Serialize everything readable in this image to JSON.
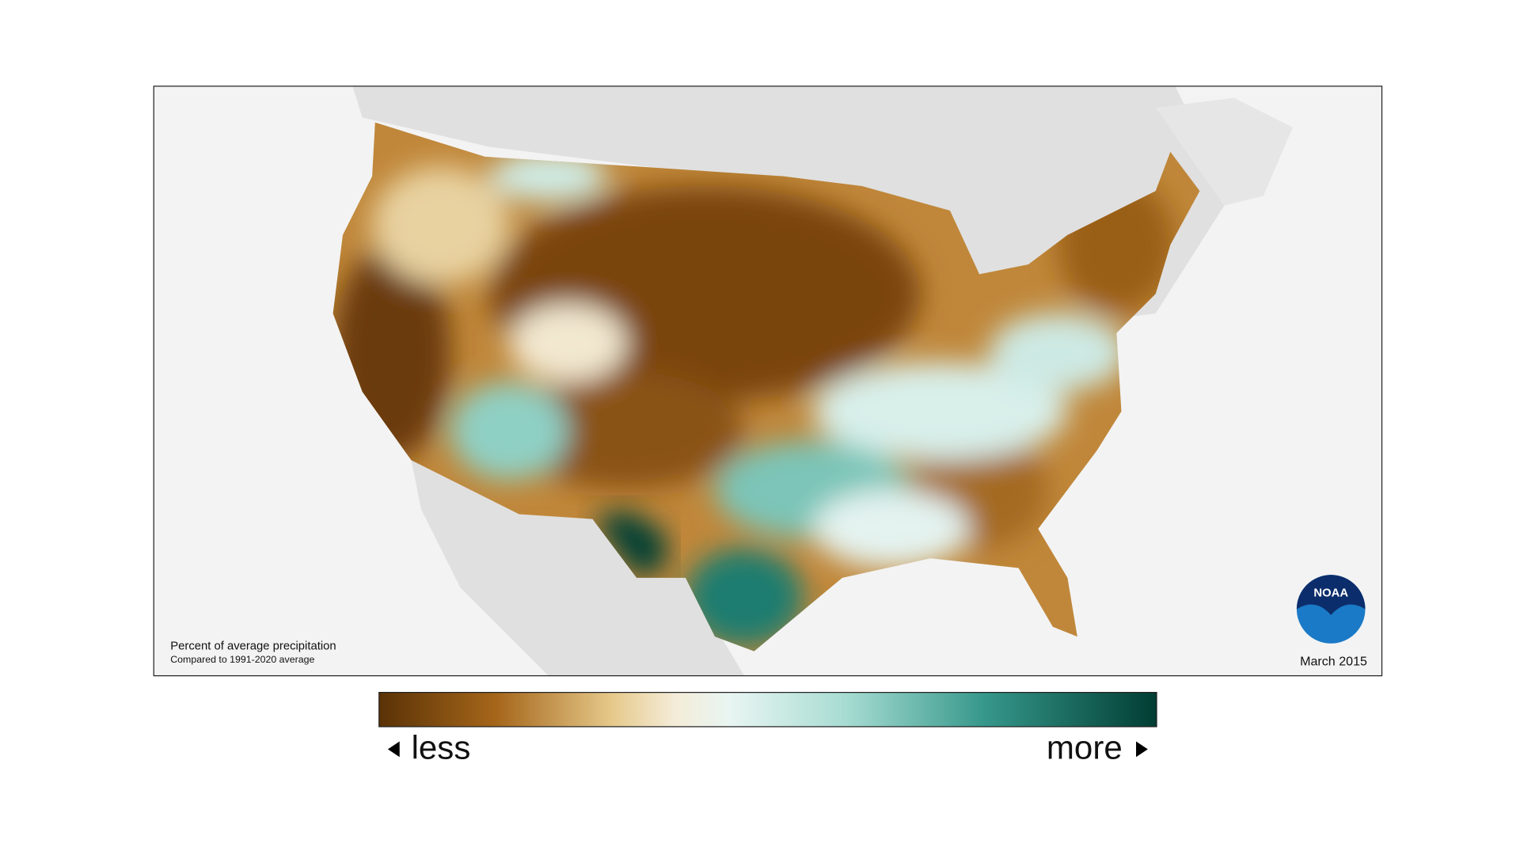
{
  "map": {
    "title": "Percent of average precipitation",
    "subtitle": "Compared to 1991-2020 average",
    "date": "March 2015"
  },
  "logo": {
    "text": "NOAA"
  },
  "legend": {
    "less": "less",
    "more": "more"
  }
}
